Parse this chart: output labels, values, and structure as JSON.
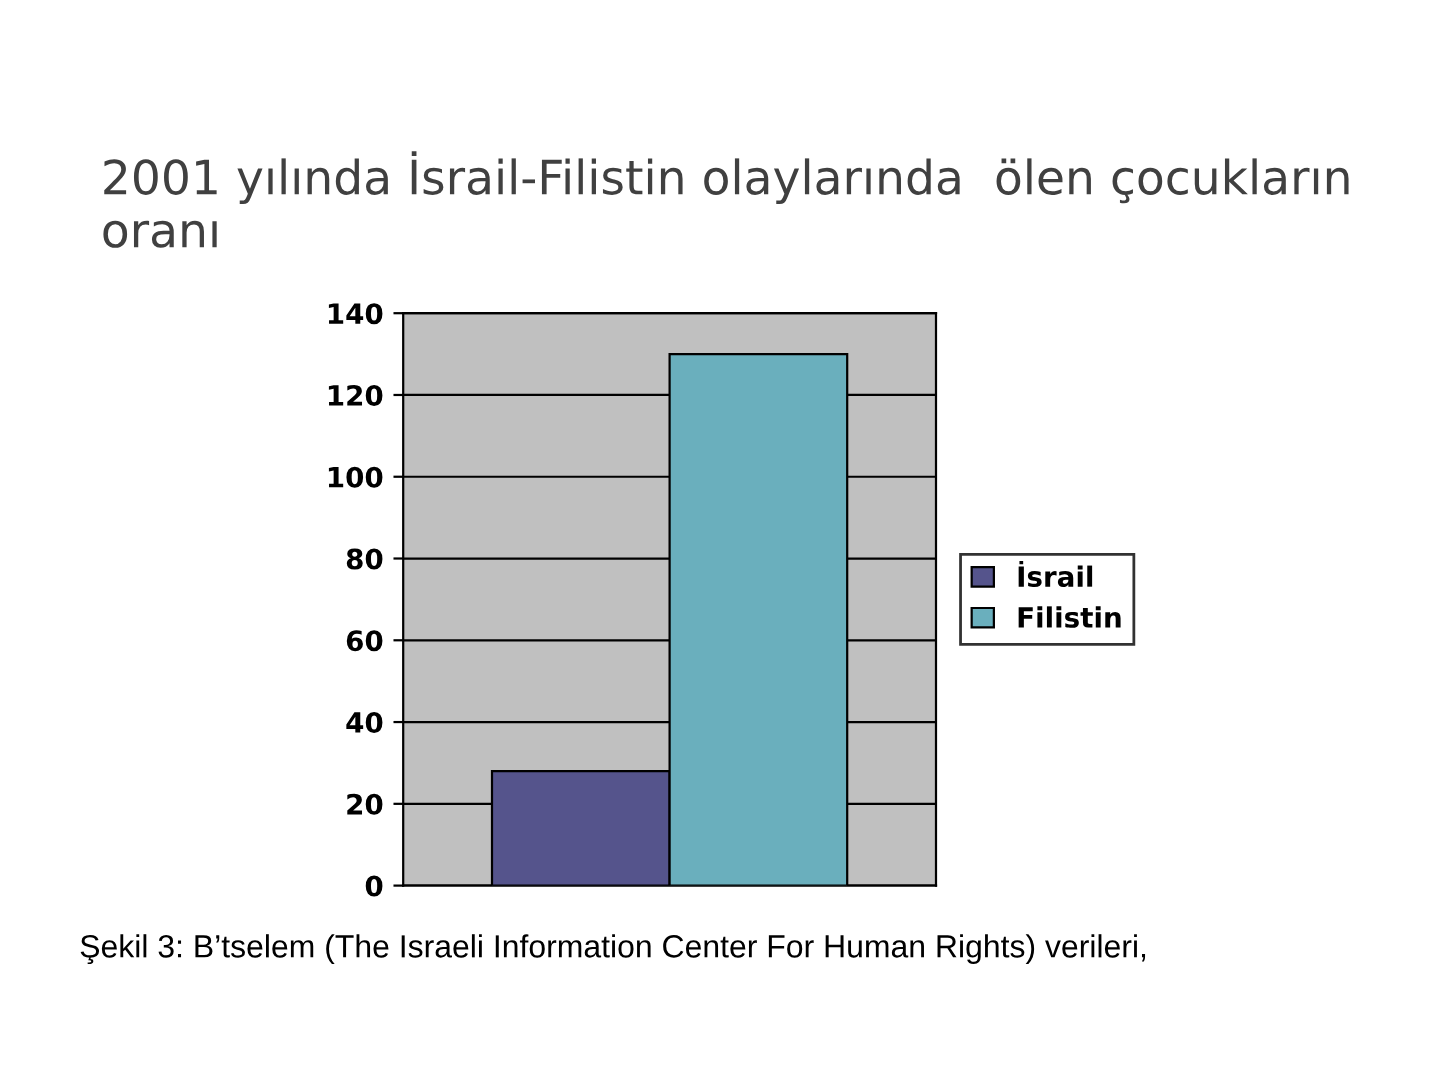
{
  "chart_data": {
    "type": "bar",
    "title": "2001 yılında İsrail-Filistin olaylarında  ölen çocukların oranı",
    "categories": [
      null
    ],
    "series": [
      {
        "name": "İsrail",
        "color": "#55548c",
        "values": [
          28
        ]
      },
      {
        "name": "Filistin",
        "color": "#6aafbd",
        "values": [
          130
        ]
      }
    ],
    "ylim": [
      0,
      140
    ],
    "yticks": [
      0,
      20,
      40,
      60,
      80,
      100,
      120,
      140
    ],
    "grid": "y",
    "legend": "right",
    "annotations": [
      "Şekil 3: B’tselem (The Israeli Information Center For Human Rights) verileri,"
    ]
  }
}
